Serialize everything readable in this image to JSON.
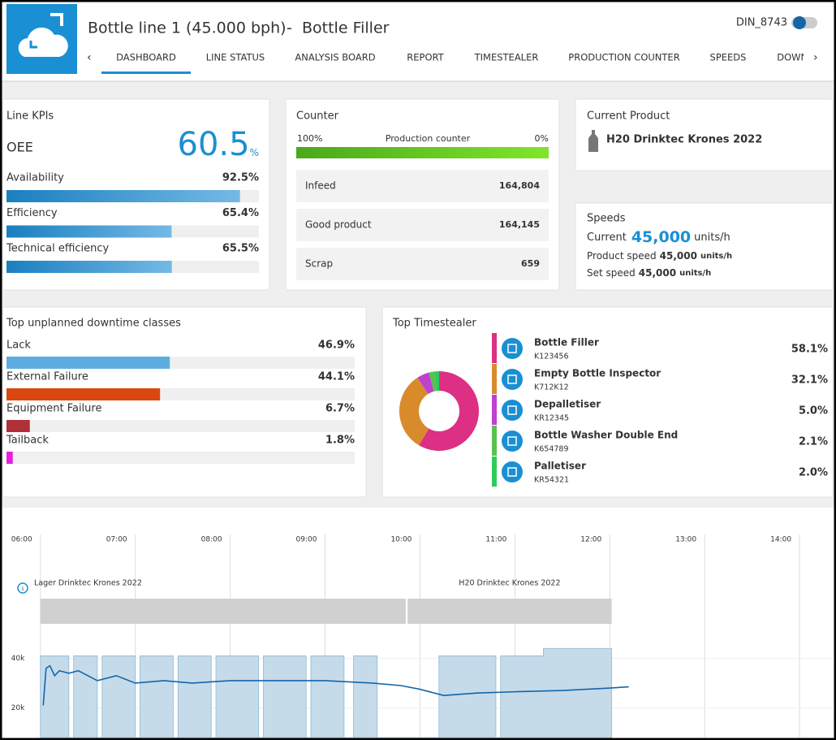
{
  "header": {
    "title": "Bottle line 1 (45.000 bph)",
    "separator": "-",
    "subtitle": "Bottle Filler",
    "user": "DIN_8743",
    "active_tab": 0,
    "tabs": [
      "DASHBOARD",
      "LINE STATUS",
      "ANALYSIS BOARD",
      "REPORT",
      "TIMESTEALER",
      "PRODUCTION COUNTER",
      "SPEEDS",
      "DOWNTIME"
    ]
  },
  "line_kpis": {
    "title": "Line KPIs",
    "oee_label": "OEE",
    "oee_value": 60.5,
    "oee_unit": "%",
    "xlim": [
      0,
      100
    ],
    "items": [
      {
        "name": "Availability",
        "value": 92.5,
        "value_label": "92.5%"
      },
      {
        "name": "Efficiency",
        "value": 65.4,
        "value_label": "65.4%"
      },
      {
        "name": "Technical efficiency",
        "value": 65.5,
        "value_label": "65.5%"
      }
    ]
  },
  "counter": {
    "title": "Counter",
    "bar_left": "100%",
    "bar_label": "Production counter",
    "bar_right": "0%",
    "rows": [
      {
        "label": "Infeed",
        "value": "164,804"
      },
      {
        "label": "Good product",
        "value": "164,145"
      },
      {
        "label": "Scrap",
        "value": "659"
      }
    ]
  },
  "current_product": {
    "title": "Current Product",
    "name": "H20 Drinktec Krones 2022"
  },
  "speeds": {
    "title": "Speeds",
    "current_label": "Current",
    "current_value": "45,000",
    "current_unit": "units/h",
    "rows": [
      {
        "label": "Product speed",
        "value": "45,000",
        "unit": "units/h"
      },
      {
        "label": "Set speed",
        "value": "45,000",
        "unit": "units/h"
      }
    ]
  },
  "downtime": {
    "title": "Top unplanned downtime classes",
    "xlim": [
      0,
      100
    ],
    "items": [
      {
        "name": "Lack",
        "value": 46.9,
        "value_label": "46.9%",
        "color": "#5dade2"
      },
      {
        "name": "External Failure",
        "value": 44.1,
        "value_label": "44.1%",
        "color": "#d9480f"
      },
      {
        "name": "Equipment Failure",
        "value": 6.7,
        "value_label": "6.7%",
        "color": "#b0303a"
      },
      {
        "name": "Tailback",
        "value": 1.8,
        "value_label": "1.8%",
        "color": "#e81ee0"
      }
    ]
  },
  "timestealer": {
    "title": "Top Timestealer",
    "items": [
      {
        "name": "Bottle Filler",
        "code": "K123456",
        "value": 58.1,
        "value_label": "58.1%",
        "color": "#dd2f84"
      },
      {
        "name": "Empty Bottle Inspector",
        "code": "K712K12",
        "value": 32.1,
        "value_label": "32.1%",
        "color": "#d98b2b"
      },
      {
        "name": "Depalletiser",
        "code": "KR12345",
        "value": 5.0,
        "value_label": "5.0%",
        "color": "#c040d0"
      },
      {
        "name": "Bottle Washer Double End",
        "code": "K654789",
        "value": 2.1,
        "value_label": "2.1%",
        "color": "#5cc050"
      },
      {
        "name": "Palletiser",
        "code": "KR54321",
        "value": 2.0,
        "value_label": "2.0%",
        "color": "#2ecc5a"
      }
    ]
  },
  "chart_data": {
    "type": "line",
    "xlim": [
      5.6,
      14.35
    ],
    "ylim": [
      8000,
      50000
    ],
    "xticks": [
      {
        "value": 6,
        "label": "06:00"
      },
      {
        "value": 7,
        "label": "07:00"
      },
      {
        "value": 8,
        "label": "08:00"
      },
      {
        "value": 9,
        "label": "09:00"
      },
      {
        "value": 10,
        "label": "10:00"
      },
      {
        "value": 11,
        "label": "11:00"
      },
      {
        "value": 12,
        "label": "12:00"
      },
      {
        "value": 13,
        "label": "13:00"
      },
      {
        "value": 14,
        "label": "14:00"
      }
    ],
    "yticks": [
      {
        "value": 20000,
        "label": "20k"
      },
      {
        "value": 40000,
        "label": "40k"
      }
    ],
    "products": [
      {
        "name": "Lager Drinktec Krones 2022",
        "start": 6,
        "end": 9.85
      },
      {
        "name": "H20 Drinktec Krones 2022",
        "start": 9.87,
        "end": 12.02
      }
    ],
    "series": [
      {
        "type": "area",
        "color": "#c5dbea",
        "x": [
          6.0,
          6.0,
          6.3,
          6.3,
          6.35,
          6.35,
          6.6,
          6.6,
          6.65,
          6.65,
          7.0,
          7.0,
          7.05,
          7.05,
          7.4,
          7.4,
          7.45,
          7.45,
          7.8,
          7.8,
          7.85,
          7.85,
          8.3,
          8.3,
          8.35,
          8.35,
          8.8,
          8.8,
          8.85,
          8.85,
          9.2,
          9.2,
          9.3,
          9.3,
          9.55,
          9.55,
          10.2,
          10.2,
          10.8,
          10.8,
          10.85,
          10.85,
          11.3,
          11.3,
          12.02,
          12.02
        ],
        "values": [
          8000,
          41000,
          41000,
          8000,
          8000,
          41000,
          41000,
          8000,
          8000,
          41000,
          41000,
          8000,
          8000,
          41000,
          41000,
          8000,
          8000,
          41000,
          41000,
          8000,
          8000,
          41000,
          41000,
          8000,
          8000,
          41000,
          41000,
          8000,
          8000,
          41000,
          41000,
          8000,
          8000,
          41000,
          41000,
          8000,
          8000,
          41000,
          41000,
          8000,
          8000,
          41000,
          41000,
          44000,
          44000,
          8000
        ]
      },
      {
        "type": "line",
        "color": "#1565a8",
        "x": [
          6.03,
          6.06,
          6.1,
          6.15,
          6.2,
          6.3,
          6.4,
          6.5,
          6.6,
          6.8,
          7.0,
          7.3,
          7.6,
          8.0,
          8.5,
          9.0,
          9.5,
          9.8,
          10.0,
          10.25,
          10.6,
          11.0,
          11.5,
          12.0,
          12.2
        ],
        "values": [
          21000,
          36000,
          37000,
          33000,
          35000,
          34000,
          35000,
          33000,
          31000,
          33000,
          30000,
          31000,
          30000,
          31000,
          31000,
          31000,
          30000,
          29000,
          27500,
          25000,
          26000,
          26500,
          27000,
          28000,
          28500
        ]
      }
    ]
  }
}
